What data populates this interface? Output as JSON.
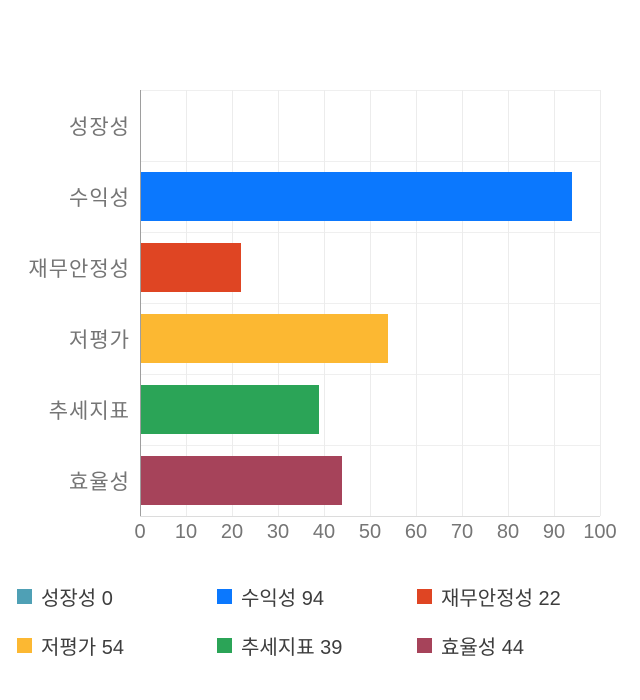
{
  "chart_data": {
    "type": "bar",
    "orientation": "horizontal",
    "title": "",
    "categories": [
      "성장성",
      "수익성",
      "재무안정성",
      "저평가",
      "추세지표",
      "효율성"
    ],
    "values": [
      0,
      94,
      22,
      54,
      39,
      44
    ],
    "colors": [
      "#4fa0b5",
      "#0b78fe",
      "#df4523",
      "#fcb832",
      "#2ba457",
      "#a6435a"
    ],
    "xlim": [
      0,
      100
    ],
    "xticks": [
      0,
      10,
      20,
      30,
      40,
      50,
      60,
      70,
      80,
      90,
      100
    ],
    "grid": true,
    "legend_position": "bottom",
    "legend": [
      {
        "label": "성장성",
        "value": 0,
        "color": "#4fa0b5"
      },
      {
        "label": "수익성",
        "value": 94,
        "color": "#0b78fe"
      },
      {
        "label": "재무안정성",
        "value": 22,
        "color": "#df4523"
      },
      {
        "label": "저평가",
        "value": 54,
        "color": "#fcb832"
      },
      {
        "label": "추세지표",
        "value": 39,
        "color": "#2ba457"
      },
      {
        "label": "효율성",
        "value": 44,
        "color": "#a6435a"
      }
    ]
  },
  "styles": {
    "axis_text_color": "#757575",
    "legend_text_color": "#3d3d3d",
    "gridline_color": "#ececec",
    "axis_line_color": "#9e9e9e",
    "background_color": "#ffffff"
  }
}
